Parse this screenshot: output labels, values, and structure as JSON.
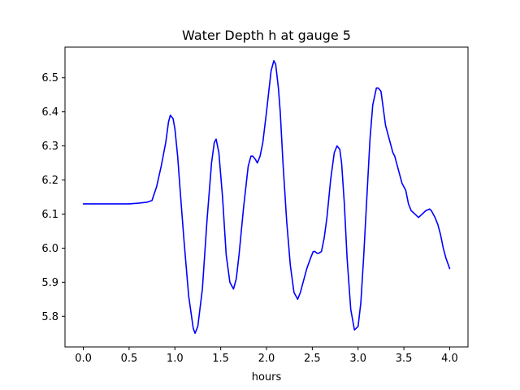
{
  "chart_data": {
    "type": "line",
    "title": "Water Depth h at gauge 5",
    "xlabel": "hours",
    "ylabel": "",
    "xlim": [
      -0.2,
      4.2
    ],
    "ylim": [
      5.71,
      6.59
    ],
    "xticks": [
      0.0,
      0.5,
      1.0,
      1.5,
      2.0,
      2.5,
      3.0,
      3.5,
      4.0
    ],
    "xtick_labels": [
      "0.0",
      "0.5",
      "1.0",
      "1.5",
      "2.0",
      "2.5",
      "3.0",
      "3.5",
      "4.0"
    ],
    "yticks": [
      5.8,
      5.9,
      6.0,
      6.1,
      6.2,
      6.3,
      6.4,
      6.5
    ],
    "ytick_labels": [
      "5.8",
      "5.9",
      "6.0",
      "6.1",
      "6.2",
      "6.3",
      "6.4",
      "6.5"
    ],
    "grid": false,
    "series": [
      {
        "color": "#0000ff",
        "x": [
          0.0,
          0.25,
          0.5,
          0.6,
          0.7,
          0.75,
          0.8,
          0.85,
          0.9,
          0.93,
          0.95,
          0.98,
          1.0,
          1.03,
          1.06,
          1.1,
          1.15,
          1.2,
          1.22,
          1.25,
          1.3,
          1.35,
          1.4,
          1.43,
          1.45,
          1.48,
          1.52,
          1.56,
          1.6,
          1.64,
          1.67,
          1.7,
          1.75,
          1.8,
          1.83,
          1.85,
          1.88,
          1.9,
          1.93,
          1.96,
          2.0,
          2.05,
          2.08,
          2.1,
          2.13,
          2.15,
          2.18,
          2.22,
          2.26,
          2.3,
          2.34,
          2.37,
          2.4,
          2.44,
          2.48,
          2.51,
          2.53,
          2.55,
          2.57,
          2.6,
          2.63,
          2.66,
          2.7,
          2.74,
          2.77,
          2.8,
          2.82,
          2.85,
          2.88,
          2.92,
          2.96,
          3.0,
          3.03,
          3.06,
          3.1,
          3.13,
          3.16,
          3.2,
          3.22,
          3.25,
          3.28,
          3.3,
          3.33,
          3.36,
          3.38,
          3.4,
          3.42,
          3.45,
          3.48,
          3.52,
          3.55,
          3.58,
          3.62,
          3.66,
          3.7,
          3.74,
          3.78,
          3.8,
          3.82,
          3.84,
          3.87,
          3.9,
          3.93,
          3.96,
          4.0
        ],
        "y": [
          6.13,
          6.13,
          6.13,
          6.132,
          6.135,
          6.14,
          6.18,
          6.24,
          6.31,
          6.37,
          6.39,
          6.38,
          6.35,
          6.27,
          6.16,
          6.02,
          5.86,
          5.765,
          5.75,
          5.77,
          5.88,
          6.08,
          6.25,
          6.31,
          6.32,
          6.28,
          6.15,
          5.98,
          5.9,
          5.88,
          5.91,
          5.98,
          6.12,
          6.24,
          6.27,
          6.27,
          6.26,
          6.25,
          6.27,
          6.31,
          6.4,
          6.52,
          6.55,
          6.54,
          6.47,
          6.4,
          6.25,
          6.08,
          5.95,
          5.87,
          5.85,
          5.87,
          5.9,
          5.94,
          5.97,
          5.99,
          5.99,
          5.985,
          5.985,
          5.99,
          6.03,
          6.09,
          6.2,
          6.28,
          6.3,
          6.29,
          6.25,
          6.13,
          5.97,
          5.82,
          5.76,
          5.77,
          5.84,
          5.97,
          6.17,
          6.32,
          6.42,
          6.47,
          6.47,
          6.46,
          6.4,
          6.36,
          6.33,
          6.3,
          6.28,
          6.27,
          6.25,
          6.22,
          6.19,
          6.17,
          6.13,
          6.11,
          6.1,
          6.09,
          6.1,
          6.11,
          6.115,
          6.11,
          6.1,
          6.09,
          6.07,
          6.04,
          6.0,
          5.97,
          5.94
        ]
      }
    ]
  }
}
